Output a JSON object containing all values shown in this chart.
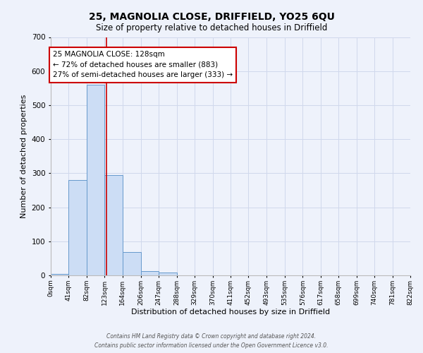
{
  "title": "25, MAGNOLIA CLOSE, DRIFFIELD, YO25 6QU",
  "subtitle": "Size of property relative to detached houses in Driffield",
  "xlabel": "Distribution of detached houses by size in Driffield",
  "ylabel": "Number of detached properties",
  "bin_edges": [
    0,
    41,
    82,
    123,
    164,
    206,
    247,
    288,
    329,
    370,
    411,
    452,
    493,
    535,
    576,
    617,
    658,
    699,
    740,
    781,
    822
  ],
  "bin_counts": [
    5,
    280,
    560,
    295,
    68,
    13,
    8,
    0,
    0,
    0,
    0,
    0,
    0,
    0,
    0,
    0,
    0,
    0,
    0,
    0
  ],
  "bar_color": "#ccddf5",
  "bar_edge_color": "#6699cc",
  "property_line_x": 128,
  "property_line_color": "#cc0000",
  "annotation_line1": "25 MAGNOLIA CLOSE: 128sqm",
  "annotation_line2": "← 72% of detached houses are smaller (883)",
  "annotation_line3": "27% of semi-detached houses are larger (333) →",
  "annotation_box_color": "#ffffff",
  "annotation_box_edge_color": "#cc0000",
  "ylim": [
    0,
    700
  ],
  "yticks": [
    0,
    100,
    200,
    300,
    400,
    500,
    600,
    700
  ],
  "xlim": [
    0,
    822
  ],
  "tick_labels": [
    "0sqm",
    "41sqm",
    "82sqm",
    "123sqm",
    "164sqm",
    "206sqm",
    "247sqm",
    "288sqm",
    "329sqm",
    "370sqm",
    "411sqm",
    "452sqm",
    "493sqm",
    "535sqm",
    "576sqm",
    "617sqm",
    "658sqm",
    "699sqm",
    "740sqm",
    "781sqm",
    "822sqm"
  ],
  "footer_text": "Contains HM Land Registry data © Crown copyright and database right 2024.\nContains public sector information licensed under the Open Government Licence v3.0.",
  "bg_color": "#eef2fb",
  "grid_color": "#d0d8ec"
}
